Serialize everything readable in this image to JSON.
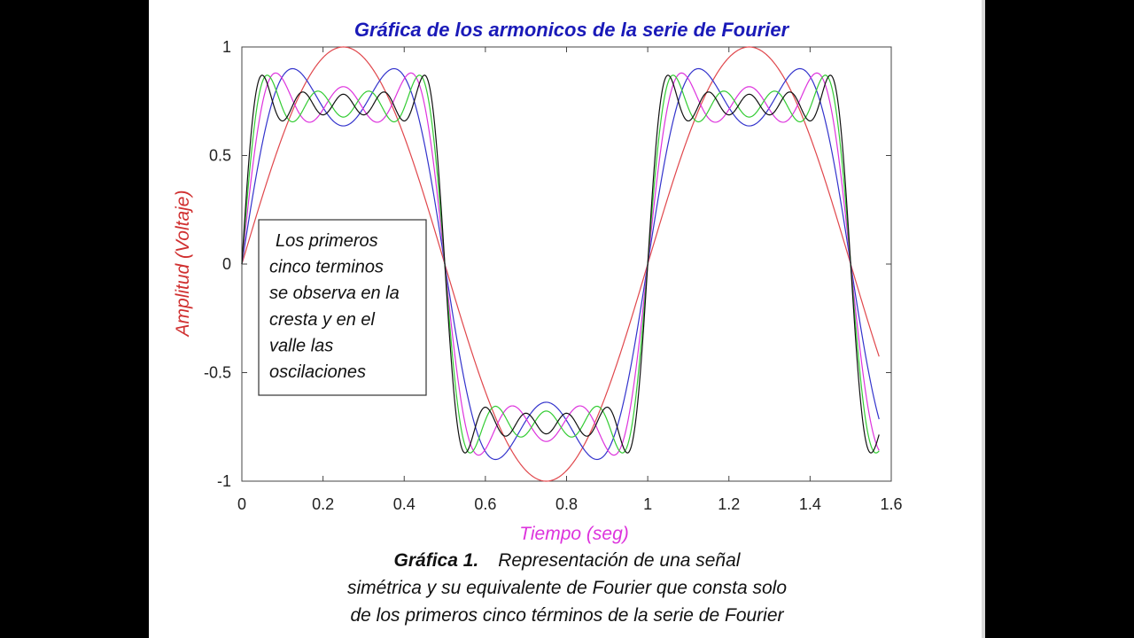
{
  "caption": {
    "lead": "Gráfica 1.",
    "lines": [
      "Representación de una señal",
      "simétrica y su equivalente de Fourier que consta solo",
      "de los primeros cinco términos de la serie de Fourier"
    ]
  },
  "chart_data": {
    "type": "line",
    "title": "Gráfica de los armonicos de la serie de Fourier",
    "xlabel": "Tiempo (seg)",
    "ylabel": "Amplitud (Voltaje)",
    "xlim": [
      0,
      1.6
    ],
    "ylim": [
      -1,
      1
    ],
    "x_ticks": [
      "0",
      "0.2",
      "0.4",
      "0.6",
      "0.8",
      "1",
      "1.2",
      "1.4",
      "1.6"
    ],
    "y_ticks": [
      "1",
      "0.5",
      "0",
      "-0.5",
      "-1"
    ],
    "grid": false,
    "annotation": {
      "lines": [
        "Los primeros",
        "cinco terminos",
        "se observa en la",
        "cresta y en el",
        "valle las",
        "oscilaciones"
      ]
    },
    "x_range": [
      0,
      1.57
    ],
    "series": [
      {
        "harmonics": 1,
        "color": "#e0474c",
        "amplitude": 1.0
      },
      {
        "harmonics": 2,
        "color": "#3333cc",
        "amplitude": 0.9
      },
      {
        "harmonics": 3,
        "color": "#dd33dd",
        "amplitude": 0.88
      },
      {
        "harmonics": 4,
        "color": "#33cc33",
        "amplitude": 0.87
      },
      {
        "harmonics": 5,
        "color": "#111111",
        "amplitude": 0.87
      }
    ],
    "colors": {
      "title": "#1a1ab8",
      "xlabel": "#dd33dd",
      "ylabel": "#d03030",
      "axes": "#444444"
    }
  }
}
